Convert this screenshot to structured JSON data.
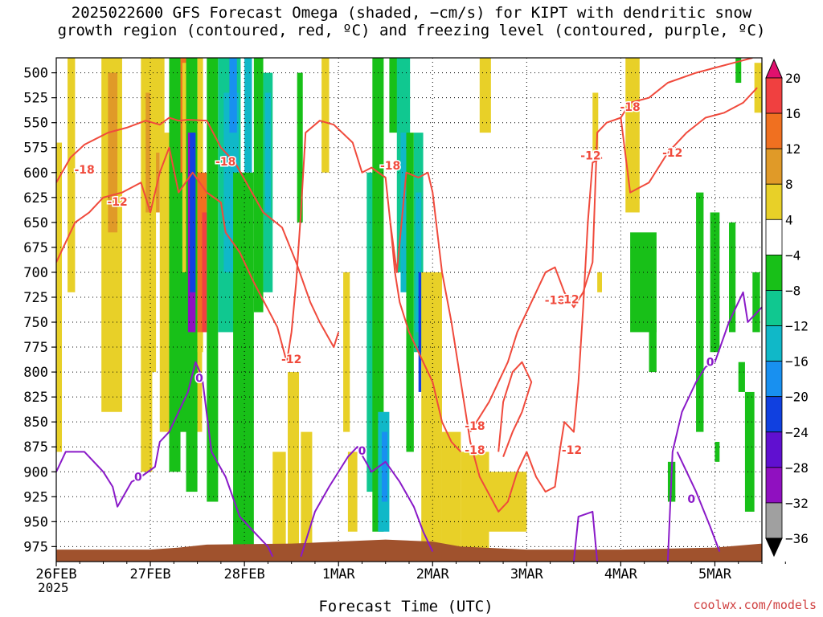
{
  "title_line1": "2025022600 GFS Forecast Omega (shaded, −cm/s) for KIPT with dendritic snow",
  "title_line2": "growth region (contoured, red, ºC) and freezing level (contoured, purple, ºC)",
  "xlabel": "Forecast Time (UTC)",
  "year_label": "2025",
  "credit": "coolwx.com/models",
  "chart_data": {
    "type": "heatmap",
    "x_dates": [
      "26FEB",
      "27FEB",
      "28FEB",
      "1MAR",
      "2MAR",
      "3MAR",
      "4MAR",
      "5MAR"
    ],
    "y_levels": [
      500,
      525,
      550,
      575,
      600,
      625,
      650,
      675,
      700,
      725,
      750,
      775,
      800,
      825,
      850,
      875,
      900,
      925,
      950,
      975
    ],
    "y_axis": "pressure (hPa), inverted",
    "x_range_days": [
      0,
      7.5
    ],
    "y_range": [
      485,
      990
    ],
    "colorbar_ticks": [
      "20",
      "16",
      "12",
      "8",
      "4",
      "−4",
      "−8",
      "−12",
      "−16",
      "−20",
      "−24",
      "−28",
      "−32",
      "−36"
    ],
    "colorbar_colors": [
      "#e0106e",
      "#f04040",
      "#f07020",
      "#e09a28",
      "#e8d028",
      "#ffffff",
      "#18c018",
      "#10c890",
      "#10b8c8",
      "#1890f0",
      "#1040e0",
      "#6010d0",
      "#9010c0",
      "#a0a0a0",
      "#000000"
    ],
    "contour_labels_red": [
      "-18",
      "-12",
      "-18",
      "-18",
      "-12",
      "-18",
      "-18",
      "-12",
      "-18",
      "-12",
      "-12",
      "-18",
      "-12"
    ],
    "contour_labels_purple": [
      "0",
      "0",
      "0",
      "0",
      "0"
    ],
    "grid": true
  },
  "colors": {
    "dgz_contour": "#f04a3c",
    "freezing_contour": "#8a1ac8",
    "terrain": "#a0522d"
  }
}
